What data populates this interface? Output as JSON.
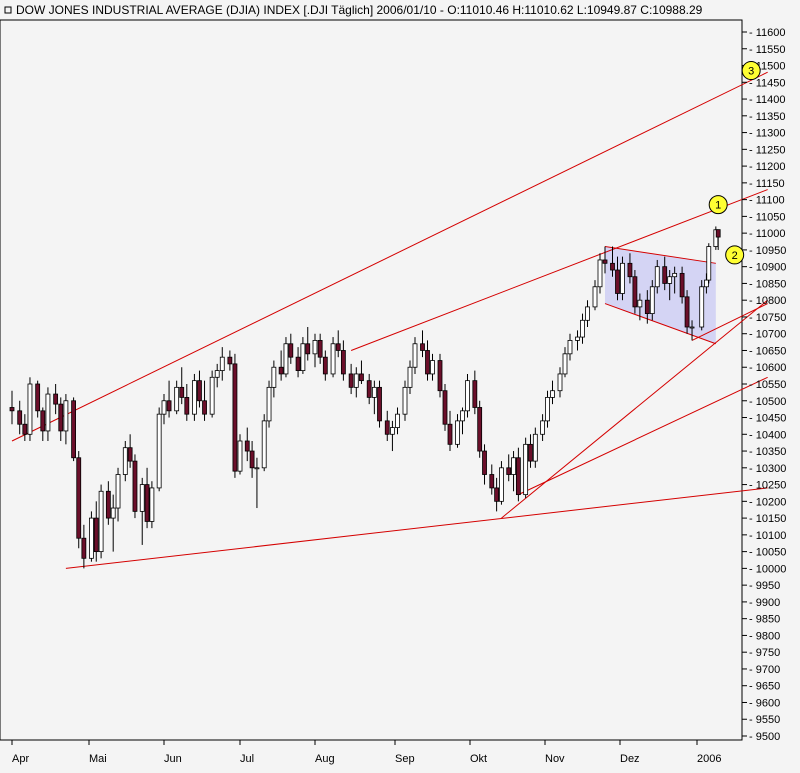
{
  "chart_data": {
    "type": "candlestick",
    "title": "DOW JONES INDUSTRIAL AVERAGE (DJIA) INDEX [.DJI  Täglich] 2006/01/10 - O:11010.46 H:11010.62 L:10949.87 C:10988.29",
    "quote": {
      "date": "2006/01/10",
      "open": 11010.46,
      "high": 11010.62,
      "low": 10949.87,
      "close": 10988.29
    },
    "ylim": [
      9500,
      11650
    ],
    "y_ticks": [
      11600,
      11550,
      11500,
      11450,
      11400,
      11350,
      11300,
      11250,
      11200,
      11150,
      11100,
      11050,
      11000,
      10950,
      10900,
      10850,
      10800,
      10750,
      10700,
      10650,
      10600,
      10550,
      10500,
      10450,
      10400,
      10350,
      10300,
      10250,
      10200,
      10150,
      10100,
      10050,
      10000,
      9950,
      9900,
      9850,
      9800,
      9750,
      9700,
      9650,
      9600,
      9550,
      9500
    ],
    "x_labels": [
      "Apr",
      "Mai",
      "Jun",
      "Jul",
      "Aug",
      "Sep",
      "Okt",
      "Nov",
      "Dez",
      "2006"
    ],
    "grid": false,
    "series": [
      {
        "x": "2005-04-01",
        "ohlc": [
          10480,
          10530,
          10430,
          10470
        ]
      },
      {
        "x": "2005-04-04",
        "ohlc": [
          10470,
          10500,
          10400,
          10430
        ]
      },
      {
        "x": "2005-04-06",
        "ohlc": [
          10430,
          10460,
          10380,
          10400
        ]
      },
      {
        "x": "2005-04-08",
        "ohlc": [
          10400,
          10570,
          10380,
          10550
        ]
      },
      {
        "x": "2005-04-11",
        "ohlc": [
          10550,
          10560,
          10450,
          10470
        ]
      },
      {
        "x": "2005-04-13",
        "ohlc": [
          10470,
          10480,
          10380,
          10410
        ]
      },
      {
        "x": "2005-04-15",
        "ohlc": [
          10410,
          10540,
          10380,
          10520
        ]
      },
      {
        "x": "2005-04-18",
        "ohlc": [
          10520,
          10550,
          10460,
          10490
        ]
      },
      {
        "x": "2005-04-20",
        "ohlc": [
          10490,
          10510,
          10380,
          10410
        ]
      },
      {
        "x": "2005-04-22",
        "ohlc": [
          10410,
          10520,
          10370,
          10500
        ]
      },
      {
        "x": "2005-04-25",
        "ohlc": [
          10500,
          10510,
          10320,
          10330
        ]
      },
      {
        "x": "2005-04-27",
        "ohlc": [
          10330,
          10350,
          10060,
          10090
        ]
      },
      {
        "x": "2005-04-29",
        "ohlc": [
          10090,
          10130,
          10000,
          10030
        ]
      },
      {
        "x": "2005-05-02",
        "ohlc": [
          10030,
          10170,
          10020,
          10150
        ]
      },
      {
        "x": "2005-05-04",
        "ohlc": [
          10150,
          10200,
          10020,
          10050
        ]
      },
      {
        "x": "2005-05-06",
        "ohlc": [
          10050,
          10250,
          10030,
          10230
        ]
      },
      {
        "x": "2005-05-09",
        "ohlc": [
          10230,
          10260,
          10130,
          10150
        ]
      },
      {
        "x": "2005-05-11",
        "ohlc": [
          10150,
          10220,
          10050,
          10180
        ]
      },
      {
        "x": "2005-05-13",
        "ohlc": [
          10180,
          10300,
          10140,
          10280
        ]
      },
      {
        "x": "2005-05-16",
        "ohlc": [
          10280,
          10380,
          10260,
          10360
        ]
      },
      {
        "x": "2005-05-18",
        "ohlc": [
          10360,
          10400,
          10300,
          10320
        ]
      },
      {
        "x": "2005-05-20",
        "ohlc": [
          10320,
          10340,
          10150,
          10170
        ]
      },
      {
        "x": "2005-05-23",
        "ohlc": [
          10170,
          10270,
          10070,
          10250
        ]
      },
      {
        "x": "2005-05-25",
        "ohlc": [
          10250,
          10300,
          10120,
          10140
        ]
      },
      {
        "x": "2005-05-27",
        "ohlc": [
          10140,
          10260,
          10120,
          10240
        ]
      },
      {
        "x": "2005-05-30",
        "ohlc": [
          10240,
          10480,
          10230,
          10460
        ]
      },
      {
        "x": "2005-06-01",
        "ohlc": [
          10460,
          10520,
          10430,
          10500
        ]
      },
      {
        "x": "2005-06-03",
        "ohlc": [
          10500,
          10560,
          10450,
          10470
        ]
      },
      {
        "x": "2005-06-06",
        "ohlc": [
          10470,
          10560,
          10460,
          10540
        ]
      },
      {
        "x": "2005-06-08",
        "ohlc": [
          10540,
          10600,
          10490,
          10510
        ]
      },
      {
        "x": "2005-06-10",
        "ohlc": [
          10510,
          10550,
          10440,
          10460
        ]
      },
      {
        "x": "2005-06-13",
        "ohlc": [
          10460,
          10580,
          10440,
          10560
        ]
      },
      {
        "x": "2005-06-15",
        "ohlc": [
          10560,
          10590,
          10480,
          10500
        ]
      },
      {
        "x": "2005-06-17",
        "ohlc": [
          10500,
          10560,
          10440,
          10460
        ]
      },
      {
        "x": "2005-06-20",
        "ohlc": [
          10460,
          10590,
          10450,
          10570
        ]
      },
      {
        "x": "2005-06-22",
        "ohlc": [
          10570,
          10610,
          10540,
          10590
        ]
      },
      {
        "x": "2005-06-24",
        "ohlc": [
          10590,
          10660,
          10560,
          10630
        ]
      },
      {
        "x": "2005-06-27",
        "ohlc": [
          10630,
          10650,
          10590,
          10610
        ]
      },
      {
        "x": "2005-06-29",
        "ohlc": [
          10610,
          10640,
          10270,
          10290
        ]
      },
      {
        "x": "2005-07-01",
        "ohlc": [
          10290,
          10400,
          10280,
          10380
        ]
      },
      {
        "x": "2005-07-04",
        "ohlc": [
          10380,
          10420,
          10320,
          10350
        ]
      },
      {
        "x": "2005-07-06",
        "ohlc": [
          10350,
          10380,
          10270,
          10300
        ]
      },
      {
        "x": "2005-07-08",
        "ohlc": [
          10300,
          10330,
          10180,
          10300
        ]
      },
      {
        "x": "2005-07-11",
        "ohlc": [
          10300,
          10460,
          10290,
          10440
        ]
      },
      {
        "x": "2005-07-13",
        "ohlc": [
          10440,
          10560,
          10420,
          10540
        ]
      },
      {
        "x": "2005-07-15",
        "ohlc": [
          10540,
          10620,
          10510,
          10600
        ]
      },
      {
        "x": "2005-07-18",
        "ohlc": [
          10600,
          10650,
          10560,
          10580
        ]
      },
      {
        "x": "2005-07-20",
        "ohlc": [
          10580,
          10690,
          10570,
          10670
        ]
      },
      {
        "x": "2005-07-22",
        "ohlc": [
          10670,
          10700,
          10610,
          10630
        ]
      },
      {
        "x": "2005-07-25",
        "ohlc": [
          10630,
          10660,
          10570,
          10590
        ]
      },
      {
        "x": "2005-07-27",
        "ohlc": [
          10590,
          10690,
          10580,
          10670
        ]
      },
      {
        "x": "2005-07-29",
        "ohlc": [
          10670,
          10720,
          10620,
          10640
        ]
      },
      {
        "x": "2005-08-01",
        "ohlc": [
          10640,
          10700,
          10600,
          10680
        ]
      },
      {
        "x": "2005-08-03",
        "ohlc": [
          10680,
          10700,
          10610,
          10630
        ]
      },
      {
        "x": "2005-08-05",
        "ohlc": [
          10630,
          10650,
          10560,
          10580
        ]
      },
      {
        "x": "2005-08-08",
        "ohlc": [
          10580,
          10690,
          10570,
          10670
        ]
      },
      {
        "x": "2005-08-10",
        "ohlc": [
          10670,
          10710,
          10630,
          10650
        ]
      },
      {
        "x": "2005-08-12",
        "ohlc": [
          10650,
          10680,
          10560,
          10580
        ]
      },
      {
        "x": "2005-08-15",
        "ohlc": [
          10580,
          10610,
          10520,
          10540
        ]
      },
      {
        "x": "2005-08-17",
        "ohlc": [
          10540,
          10600,
          10510,
          10580
        ]
      },
      {
        "x": "2005-08-19",
        "ohlc": [
          10580,
          10620,
          10550,
          10560
        ]
      },
      {
        "x": "2005-08-22",
        "ohlc": [
          10560,
          10580,
          10490,
          10510
        ]
      },
      {
        "x": "2005-08-24",
        "ohlc": [
          10510,
          10560,
          10460,
          10540
        ]
      },
      {
        "x": "2005-08-26",
        "ohlc": [
          10540,
          10560,
          10420,
          10440
        ]
      },
      {
        "x": "2005-08-29",
        "ohlc": [
          10440,
          10470,
          10380,
          10400
        ]
      },
      {
        "x": "2005-08-31",
        "ohlc": [
          10400,
          10440,
          10350,
          10420
        ]
      },
      {
        "x": "2005-09-02",
        "ohlc": [
          10420,
          10480,
          10400,
          10460
        ]
      },
      {
        "x": "2005-09-05",
        "ohlc": [
          10460,
          10560,
          10440,
          10540
        ]
      },
      {
        "x": "2005-09-07",
        "ohlc": [
          10540,
          10620,
          10520,
          10600
        ]
      },
      {
        "x": "2005-09-09",
        "ohlc": [
          10600,
          10690,
          10580,
          10670
        ]
      },
      {
        "x": "2005-09-12",
        "ohlc": [
          10670,
          10710,
          10630,
          10650
        ]
      },
      {
        "x": "2005-09-14",
        "ohlc": [
          10650,
          10680,
          10560,
          10580
        ]
      },
      {
        "x": "2005-09-16",
        "ohlc": [
          10580,
          10640,
          10560,
          10620
        ]
      },
      {
        "x": "2005-09-19",
        "ohlc": [
          10620,
          10640,
          10510,
          10530
        ]
      },
      {
        "x": "2005-09-21",
        "ohlc": [
          10530,
          10550,
          10410,
          10430
        ]
      },
      {
        "x": "2005-09-23",
        "ohlc": [
          10430,
          10470,
          10350,
          10370
        ]
      },
      {
        "x": "2005-09-26",
        "ohlc": [
          10370,
          10460,
          10360,
          10440
        ]
      },
      {
        "x": "2005-09-28",
        "ohlc": [
          10440,
          10480,
          10400,
          10470
        ]
      },
      {
        "x": "2005-09-30",
        "ohlc": [
          10470,
          10580,
          10450,
          10560
        ]
      },
      {
        "x": "2005-10-03",
        "ohlc": [
          10560,
          10590,
          10460,
          10480
        ]
      },
      {
        "x": "2005-10-05",
        "ohlc": [
          10480,
          10500,
          10330,
          10350
        ]
      },
      {
        "x": "2005-10-07",
        "ohlc": [
          10350,
          10370,
          10250,
          10280
        ]
      },
      {
        "x": "2005-10-10",
        "ohlc": [
          10280,
          10310,
          10220,
          10240
        ]
      },
      {
        "x": "2005-10-12",
        "ohlc": [
          10240,
          10270,
          10170,
          10200
        ]
      },
      {
        "x": "2005-10-14",
        "ohlc": [
          10200,
          10320,
          10190,
          10300
        ]
      },
      {
        "x": "2005-10-17",
        "ohlc": [
          10300,
          10340,
          10260,
          10280
        ]
      },
      {
        "x": "2005-10-19",
        "ohlc": [
          10280,
          10350,
          10230,
          10330
        ]
      },
      {
        "x": "2005-10-21",
        "ohlc": [
          10330,
          10360,
          10200,
          10220
        ]
      },
      {
        "x": "2005-10-24",
        "ohlc": [
          10220,
          10390,
          10210,
          10370
        ]
      },
      {
        "x": "2005-10-26",
        "ohlc": [
          10370,
          10400,
          10300,
          10320
        ]
      },
      {
        "x": "2005-10-28",
        "ohlc": [
          10320,
          10420,
          10300,
          10400
        ]
      },
      {
        "x": "2005-10-31",
        "ohlc": [
          10400,
          10460,
          10380,
          10440
        ]
      },
      {
        "x": "2005-11-02",
        "ohlc": [
          10440,
          10530,
          10420,
          10510
        ]
      },
      {
        "x": "2005-11-04",
        "ohlc": [
          10510,
          10560,
          10490,
          10530
        ]
      },
      {
        "x": "2005-11-07",
        "ohlc": [
          10530,
          10600,
          10510,
          10580
        ]
      },
      {
        "x": "2005-11-09",
        "ohlc": [
          10580,
          10660,
          10570,
          10640
        ]
      },
      {
        "x": "2005-11-11",
        "ohlc": [
          10640,
          10700,
          10620,
          10680
        ]
      },
      {
        "x": "2005-11-14",
        "ohlc": [
          10680,
          10710,
          10650,
          10690
        ]
      },
      {
        "x": "2005-11-16",
        "ohlc": [
          10690,
          10760,
          10670,
          10740
        ]
      },
      {
        "x": "2005-11-18",
        "ohlc": [
          10740,
          10800,
          10720,
          10780
        ]
      },
      {
        "x": "2005-11-21",
        "ohlc": [
          10780,
          10860,
          10770,
          10840
        ]
      },
      {
        "x": "2005-11-23",
        "ohlc": [
          10840,
          10940,
          10820,
          10920
        ]
      },
      {
        "x": "2005-11-25",
        "ohlc": [
          10920,
          10960,
          10880,
          10910
        ]
      },
      {
        "x": "2005-11-28",
        "ohlc": [
          10910,
          10960,
          10870,
          10890
        ]
      },
      {
        "x": "2005-11-30",
        "ohlc": [
          10890,
          10930,
          10800,
          10820
        ]
      },
      {
        "x": "2005-12-02",
        "ohlc": [
          10820,
          10930,
          10800,
          10910
        ]
      },
      {
        "x": "2005-12-05",
        "ohlc": [
          10910,
          10940,
          10850,
          10870
        ]
      },
      {
        "x": "2005-12-07",
        "ohlc": [
          10870,
          10890,
          10760,
          10780
        ]
      },
      {
        "x": "2005-12-09",
        "ohlc": [
          10780,
          10820,
          10740,
          10800
        ]
      },
      {
        "x": "2005-12-12",
        "ohlc": [
          10800,
          10830,
          10730,
          10760
        ]
      },
      {
        "x": "2005-12-14",
        "ohlc": [
          10760,
          10860,
          10740,
          10840
        ]
      },
      {
        "x": "2005-12-16",
        "ohlc": [
          10840,
          10920,
          10820,
          10900
        ]
      },
      {
        "x": "2005-12-19",
        "ohlc": [
          10900,
          10930,
          10830,
          10850
        ]
      },
      {
        "x": "2005-12-21",
        "ohlc": [
          10850,
          10890,
          10800,
          10870
        ]
      },
      {
        "x": "2005-12-23",
        "ohlc": [
          10870,
          10900,
          10820,
          10880
        ]
      },
      {
        "x": "2005-12-26",
        "ohlc": [
          10880,
          10900,
          10790,
          10810
        ]
      },
      {
        "x": "2005-12-28",
        "ohlc": [
          10810,
          10830,
          10700,
          10720
        ]
      },
      {
        "x": "2005-12-30",
        "ohlc": [
          10720,
          10740,
          10680,
          10720
        ]
      },
      {
        "x": "2006-01-03",
        "ohlc": [
          10720,
          10860,
          10710,
          10840
        ]
      },
      {
        "x": "2006-01-05",
        "ohlc": [
          10840,
          10880,
          10820,
          10860
        ]
      },
      {
        "x": "2006-01-06",
        "ohlc": [
          10860,
          10970,
          10850,
          10960
        ]
      },
      {
        "x": "2006-01-09",
        "ohlc": [
          10960,
          11020,
          10950,
          11010
        ]
      },
      {
        "x": "2006-01-10",
        "ohlc": [
          11010.46,
          11010.62,
          10949.87,
          10988.29
        ]
      }
    ],
    "trendlines": [
      {
        "from": [
          "2005-04-01",
          10380
        ],
        "to": [
          "2006-01-31",
          11480
        ]
      },
      {
        "from": [
          "2005-04-22",
          10000
        ],
        "to": [
          "2006-01-31",
          10240
        ]
      },
      {
        "from": [
          "2005-08-15",
          10650
        ],
        "to": [
          "2006-01-31",
          11130
        ]
      },
      {
        "from": [
          "2005-11-25",
          10960
        ],
        "to": [
          "2006-01-09",
          10910
        ]
      },
      {
        "from": [
          "2005-11-25",
          10790
        ],
        "to": [
          "2006-01-09",
          10670
        ]
      },
      {
        "from": [
          "2005-10-14",
          10150
        ],
        "to": [
          "2006-01-31",
          10800
        ]
      },
      {
        "from": [
          "2005-10-21",
          10220
        ],
        "to": [
          "2006-01-31",
          10570
        ]
      },
      {
        "from": [
          "2005-12-30",
          10680
        ],
        "to": [
          "2006-01-31",
          10790
        ]
      }
    ],
    "channel_box": {
      "from_x": "2005-11-25",
      "to_x": "2006-01-09",
      "top": [
        10960,
        10910
      ],
      "bottom": [
        10790,
        10670
      ]
    },
    "annotations": [
      {
        "label": "1",
        "x": "2006-01-10",
        "y": 11085
      },
      {
        "label": "2",
        "x": "2006-01-17",
        "y": 10935
      },
      {
        "label": "3",
        "x": "2006-01-24",
        "y": 11485
      }
    ]
  }
}
